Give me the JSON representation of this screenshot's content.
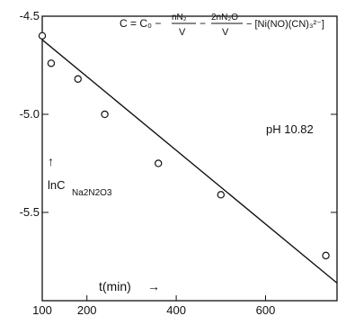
{
  "chart_data": {
    "type": "scatter",
    "xlabel": "t(min)",
    "xlabel_arrow": "→",
    "ylabel_prefix": "lnC",
    "ylabel_sub": "Na2N2O3",
    "ylabel_arrow": "↑",
    "xlim": [
      100,
      760
    ],
    "ylim": [
      -5.95,
      -4.5
    ],
    "x_ticks": [
      100,
      200,
      400,
      600
    ],
    "x_tick_labels": [
      "100",
      "200",
      "400",
      "600"
    ],
    "y_ticks": [
      -4.5,
      -5.0,
      -5.5
    ],
    "y_tick_labels": [
      "-4.5",
      "-5.0",
      "-5.5"
    ],
    "annotation_ph": "pH 10.82",
    "equation": {
      "lhs": "C = C₀ −",
      "t1_num": "nN₂",
      "t1_den": "V",
      "minus": "−",
      "t2_num": "2nN₂O",
      "t2_den": "V",
      "tail": "− [Ni(NO)(CN)₃²⁻]"
    },
    "points": [
      {
        "x": 100,
        "y": -4.6
      },
      {
        "x": 120,
        "y": -4.74
      },
      {
        "x": 180,
        "y": -4.82
      },
      {
        "x": 240,
        "y": -5.0
      },
      {
        "x": 360,
        "y": -5.25
      },
      {
        "x": 500,
        "y": -5.41
      },
      {
        "x": 735,
        "y": -5.72
      }
    ],
    "fit_line": {
      "x": [
        100,
        760
      ],
      "y": [
        -4.62,
        -5.86
      ]
    },
    "grid": false
  }
}
